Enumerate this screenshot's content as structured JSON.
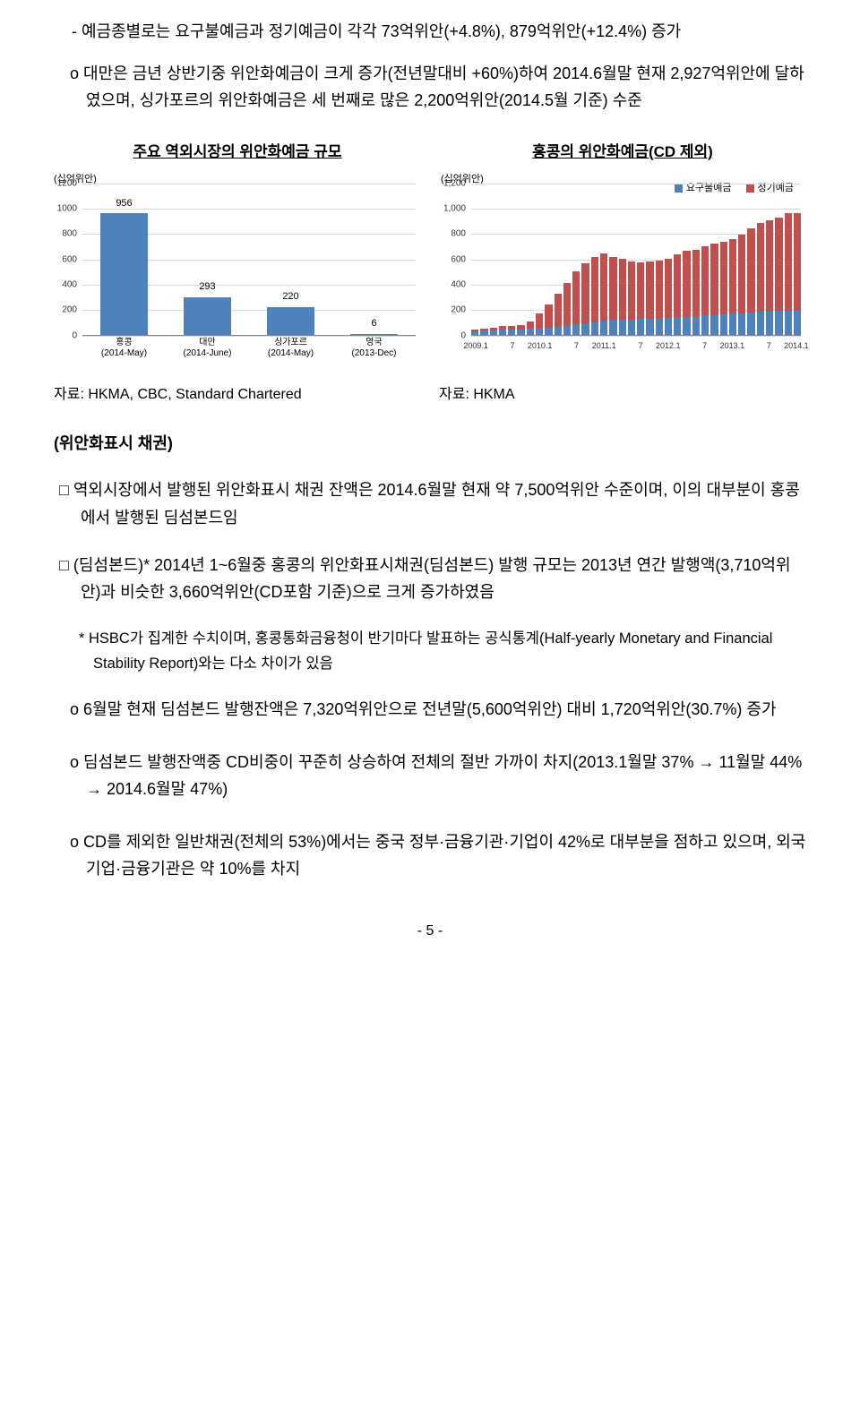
{
  "para1": "- 예금종별로는 요구불예금과 정기예금이 각각 73억위안(+4.8%), 879억위안(+12.4%) 증가",
  "para2": "o 대만은 금년 상반기중 위안화예금이 크게 증가(전년말대비 +60%)하여 2014.6월말 현재 2,927억위안에 달하였으며, 싱가포르의 위안화예금은 세 번째로 많은 2,200억위안(2014.5월 기준) 수준",
  "chart1": {
    "title": "주요 역외시장의 위안화예금 규모",
    "y_axis_label": "(십억위안)",
    "categories": [
      "홍콩",
      "대만",
      "싱가포르",
      "영국"
    ],
    "sub_labels": [
      "(2014-May)",
      "(2014-June)",
      "(2014-May)",
      "(2013-Dec)"
    ],
    "values": [
      956,
      293,
      220,
      6
    ],
    "value_labels": [
      "956",
      "293",
      "220",
      "6"
    ],
    "ymax": 1200,
    "yticks": [
      "0",
      "200",
      "400",
      "600",
      "800",
      "1000",
      "1200"
    ],
    "bar_color": "#4f81bd",
    "source": "자료: HKMA, CBC, Standard Chartered"
  },
  "chart2": {
    "title": "홍콩의 위안화예금(CD 제외)",
    "y_axis_label": "(십억위안)",
    "legend": {
      "a": "요구불예금",
      "b": "정기예금"
    },
    "colors": {
      "a": "#4f81bd",
      "b": "#c0504d"
    },
    "ymax": 1200,
    "yticks": [
      "0",
      "200",
      "400",
      "600",
      "800",
      "1,000",
      "1,200"
    ],
    "series": [
      [
        25,
        15
      ],
      [
        30,
        18
      ],
      [
        35,
        22
      ],
      [
        40,
        25
      ],
      [
        40,
        28
      ],
      [
        42,
        30
      ],
      [
        45,
        60
      ],
      [
        50,
        120
      ],
      [
        55,
        180
      ],
      [
        60,
        260
      ],
      [
        70,
        340
      ],
      [
        80,
        420
      ],
      [
        90,
        470
      ],
      [
        100,
        510
      ],
      [
        110,
        530
      ],
      [
        115,
        500
      ],
      [
        118,
        480
      ],
      [
        120,
        460
      ],
      [
        122,
        450
      ],
      [
        125,
        450
      ],
      [
        128,
        455
      ],
      [
        130,
        470
      ],
      [
        135,
        500
      ],
      [
        140,
        523
      ],
      [
        142,
        528
      ],
      [
        150,
        550
      ],
      [
        155,
        560
      ],
      [
        160,
        570
      ],
      [
        165,
        590
      ],
      [
        170,
        620
      ],
      [
        175,
        660
      ],
      [
        178,
        700
      ],
      [
        180,
        720
      ],
      [
        185,
        740
      ],
      [
        188,
        770
      ],
      [
        190,
        766
      ]
    ],
    "x_ticks": [
      "2009.1",
      "7",
      "2010.1",
      "7",
      "2011.1",
      "7",
      "2012.1",
      "7",
      "2013.1",
      "7",
      "2014.1"
    ],
    "source": "자료: HKMA"
  },
  "section_title": "(위안화표시 채권)",
  "para3": "□ 역외시장에서 발행된 위안화표시 채권 잔액은 2014.6월말 현재 약 7,500억위안 수준이며, 이의 대부분이 홍콩에서 발행된 딤섬본드임",
  "para4": "□ (딤섬본드)* 2014년 1~6월중 홍콩의 위안화표시채권(딤섬본드) 발행 규모는 2013년 연간 발행액(3,710억위안)과 비슷한 3,660억위안(CD포함 기준)으로 크게 증가하였음",
  "para5": "* HSBC가 집계한 수치이며, 홍콩통화금융청이 반기마다 발표하는 공식통계(Half-yearly Monetary and Financial Stability Report)와는 다소 차이가 있음",
  "para6": "o 6월말 현재 딤섬본드 발행잔액은 7,320억위안으로 전년말(5,600억위안) 대비 1,720억위안(30.7%) 증가",
  "para7": "o 딤섬본드 발행잔액중 CD비중이 꾸준히 상승하여 전체의 절반 가까이 차지(2013.1월말 37% → 11월말 44% → 2014.6월말 47%)",
  "para8": "o CD를 제외한 일반채권(전체의 53%)에서는 중국 정부·금융기관·기업이 42%로 대부분을 점하고 있으며, 외국 기업·금융기관은 약 10%를 차지",
  "page_num": "- 5 -"
}
